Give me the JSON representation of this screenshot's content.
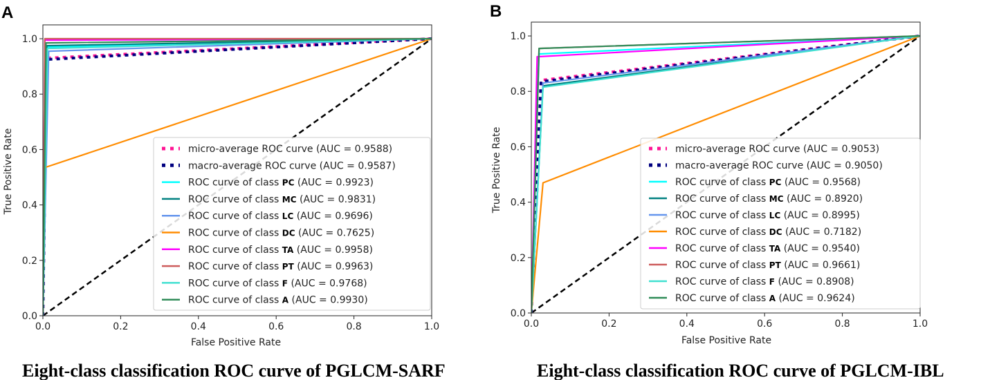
{
  "chart_data": [
    {
      "type": "line",
      "panel_label": "A",
      "caption": "Eight-class classification ROC curve of PGLCM-SARF",
      "xlabel": "False Positive Rate",
      "ylabel": "True Positive Rate",
      "xlim": [
        0,
        1
      ],
      "ylim": [
        0,
        1.05
      ],
      "x_ticks": [
        "0.0",
        "0.2",
        "0.4",
        "0.6",
        "0.8",
        "1.0"
      ],
      "y_ticks": [
        "0.0",
        "0.2",
        "0.4",
        "0.6",
        "0.8",
        "1.0"
      ],
      "legend_class_prefix": "ROC curve of class",
      "series": [
        {
          "name": "diagonal",
          "color": "#000000",
          "style": "dashed",
          "x": [
            0,
            1
          ],
          "y": [
            0,
            1
          ]
        },
        {
          "name": "micro-average ROC curve",
          "label": "micro-average ROC curve",
          "auc": "(AUC = 0.9588)",
          "color": "#ff1493",
          "style": "dotted",
          "x": [
            0,
            0.01,
            1
          ],
          "y": [
            0,
            0.93,
            1
          ]
        },
        {
          "name": "macro-average ROC curve",
          "label": "macro-average ROC curve",
          "auc": "(AUC = 0.9587)",
          "color": "#000080",
          "style": "dotted",
          "x": [
            0,
            0.01,
            1
          ],
          "y": [
            0,
            0.925,
            1
          ]
        },
        {
          "name": "PC",
          "cls": "PC",
          "auc": "(AUC = 0.9923)",
          "color": "#00ffff",
          "style": "solid",
          "x": [
            0,
            0.01,
            1
          ],
          "y": [
            0,
            0.97,
            1
          ]
        },
        {
          "name": "MC",
          "cls": "MC",
          "auc": "(AUC = 0.9831)",
          "color": "#008080",
          "style": "solid",
          "x": [
            0,
            0.01,
            1
          ],
          "y": [
            0,
            0.975,
            1
          ]
        },
        {
          "name": "LC",
          "cls": "LC",
          "auc": "(AUC = 0.9696)",
          "color": "#6495ed",
          "style": "solid",
          "x": [
            0,
            0.015,
            1
          ],
          "y": [
            0,
            0.955,
            1
          ]
        },
        {
          "name": "DC",
          "cls": "DC",
          "auc": "(AUC = 0.7625)",
          "color": "#ff8c00",
          "style": "solid",
          "x": [
            0,
            0.005,
            1
          ],
          "y": [
            0,
            0.535,
            1
          ]
        },
        {
          "name": "TA",
          "cls": "TA",
          "auc": "(AUC = 0.9958)",
          "color": "#ff00ff",
          "style": "solid",
          "x": [
            0,
            0.005,
            1
          ],
          "y": [
            0,
            0.995,
            1
          ]
        },
        {
          "name": "PT",
          "cls": "PT",
          "auc": "(AUC = 0.9963)",
          "color": "#cd5c5c",
          "style": "solid",
          "x": [
            0,
            0.005,
            1
          ],
          "y": [
            0,
            1.0,
            1
          ]
        },
        {
          "name": "F",
          "cls": "F",
          "auc": "(AUC = 0.9768)",
          "color": "#40e0d0",
          "style": "solid",
          "x": [
            0,
            0.012,
            1
          ],
          "y": [
            0,
            0.965,
            1
          ]
        },
        {
          "name": "A",
          "cls": "A",
          "auc": "(AUC = 0.9930)",
          "color": "#2e8b57",
          "style": "solid",
          "x": [
            0,
            0.008,
            1
          ],
          "y": [
            0,
            0.985,
            1
          ]
        }
      ]
    },
    {
      "type": "line",
      "panel_label": "B",
      "caption": "Eight-class classification ROC curve of PGLCM-IBL",
      "xlabel": "False Positive Rate",
      "ylabel": "True Positive Rate",
      "xlim": [
        0,
        1
      ],
      "ylim": [
        0,
        1.05
      ],
      "x_ticks": [
        "0.0",
        "0.2",
        "0.4",
        "0.6",
        "0.8",
        "1.0"
      ],
      "y_ticks": [
        "0.0",
        "0.2",
        "0.4",
        "0.6",
        "0.8",
        "1.0"
      ],
      "legend_class_prefix": "ROC curve of class",
      "series": [
        {
          "name": "diagonal",
          "color": "#000000",
          "style": "dashed",
          "x": [
            0,
            1
          ],
          "y": [
            0,
            1
          ]
        },
        {
          "name": "micro-average ROC curve",
          "label": "micro-average ROC curve",
          "auc": "(AUC = 0.9053)",
          "color": "#ff1493",
          "style": "dotted",
          "x": [
            0,
            0.025,
            1
          ],
          "y": [
            0,
            0.84,
            1
          ]
        },
        {
          "name": "macro-average ROC curve",
          "label": "macro-average ROC curve",
          "auc": "(AUC = 0.9050)",
          "color": "#000080",
          "style": "dotted",
          "x": [
            0,
            0.025,
            1
          ],
          "y": [
            0,
            0.835,
            1
          ]
        },
        {
          "name": "PC",
          "cls": "PC",
          "auc": "(AUC = 0.9568)",
          "color": "#00ffff",
          "style": "solid",
          "x": [
            0,
            0.02,
            1
          ],
          "y": [
            0,
            0.935,
            1
          ]
        },
        {
          "name": "MC",
          "cls": "MC",
          "auc": "(AUC = 0.8920)",
          "color": "#008080",
          "style": "solid",
          "x": [
            0,
            0.03,
            1
          ],
          "y": [
            0,
            0.82,
            1
          ]
        },
        {
          "name": "LC",
          "cls": "LC",
          "auc": "(AUC = 0.8995)",
          "color": "#6495ed",
          "style": "solid",
          "x": [
            0,
            0.03,
            1
          ],
          "y": [
            0,
            0.83,
            1
          ]
        },
        {
          "name": "DC",
          "cls": "DC",
          "auc": "(AUC = 0.7182)",
          "color": "#ff8c00",
          "style": "solid",
          "x": [
            0,
            0.03,
            1
          ],
          "y": [
            0,
            0.47,
            1
          ]
        },
        {
          "name": "TA",
          "cls": "TA",
          "auc": "(AUC = 0.9540)",
          "color": "#ff00ff",
          "style": "solid",
          "x": [
            0,
            0.015,
            1
          ],
          "y": [
            0,
            0.925,
            1
          ]
        },
        {
          "name": "PT",
          "cls": "PT",
          "auc": "(AUC = 0.9661)",
          "color": "#cd5c5c",
          "style": "solid",
          "x": [
            0,
            0.02,
            1
          ],
          "y": [
            0,
            0.955,
            1
          ]
        },
        {
          "name": "F",
          "cls": "F",
          "auc": "(AUC = 0.8908)",
          "color": "#40e0d0",
          "style": "solid",
          "x": [
            0,
            0.03,
            1
          ],
          "y": [
            0,
            0.815,
            1
          ]
        },
        {
          "name": "A",
          "cls": "A",
          "auc": "(AUC = 0.9624)",
          "color": "#2e8b57",
          "style": "solid",
          "x": [
            0,
            0.02,
            1
          ],
          "y": [
            0,
            0.955,
            1
          ]
        }
      ]
    }
  ]
}
